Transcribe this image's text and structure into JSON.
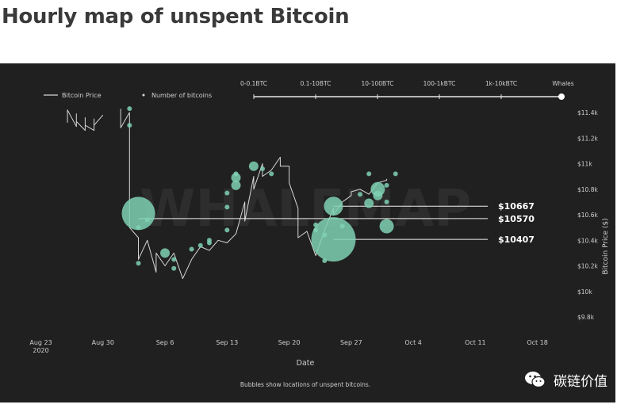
{
  "page": {
    "title": "Hourly map of unspent Bitcoin",
    "watermark": "WHALEMAP",
    "footnote": "Bubbles show locations of unspent bitcoins.",
    "wechat_label": "碳链价值"
  },
  "colors": {
    "background": "#202020",
    "line": "#d7d7d7",
    "bubble": "#7fd1b4",
    "text": "#cfcfcf"
  },
  "chart_data": {
    "type": "scatter",
    "title": "",
    "xlabel": "Date",
    "ylabel": "Bitcoin Price ($)",
    "x_ticks": [
      "Aug 23\n2020",
      "Aug 30",
      "Sep 6",
      "Sep 13",
      "Sep 20",
      "Sep 27",
      "Oct 4",
      "Oct 11",
      "Oct 18"
    ],
    "xlim": [
      "2020-08-20",
      "2020-10-20"
    ],
    "y_ticks": [
      "$11.4k",
      "$11.2k",
      "$11k",
      "$10.8k",
      "$10.6k",
      "$10.4k",
      "$10.2k",
      "$10k",
      "$9.8k"
    ],
    "ylim": [
      9800,
      11400
    ],
    "grid": false,
    "legend": {
      "position": "top-left",
      "items": [
        {
          "label": "Bitcoin Price",
          "marker": "line"
        },
        {
          "label": "Number of bitcoins",
          "marker": "dot"
        }
      ]
    },
    "size_legend": {
      "labels": [
        "0-0.1BTC",
        "0.1-10BTC",
        "10-100BTC",
        "100-1kBTC",
        "1k-10kBTC",
        "Whales"
      ]
    },
    "price_series": {
      "name": "Bitcoin Price",
      "x": [
        "2020-08-26",
        "2020-08-26",
        "2020-08-27",
        "2020-08-27",
        "2020-08-27",
        "2020-08-28",
        "2020-08-28",
        "2020-08-28",
        "2020-08-29",
        "2020-08-29",
        "2020-08-29",
        "2020-08-30",
        "2020-09-01",
        "2020-09-01",
        "2020-09-02",
        "2020-09-02",
        "2020-09-02",
        "2020-09-02",
        "2020-09-03",
        "2020-09-03",
        "2020-09-04",
        "2020-09-05",
        "2020-09-05",
        "2020-09-06",
        "2020-09-07",
        "2020-09-08",
        "2020-09-09",
        "2020-09-10",
        "2020-09-11",
        "2020-09-12",
        "2020-09-13",
        "2020-09-14",
        "2020-09-15",
        "2020-09-15",
        "2020-09-16",
        "2020-09-16",
        "2020-09-17",
        "2020-09-17",
        "2020-09-18",
        "2020-09-19",
        "2020-09-19",
        "2020-09-20",
        "2020-09-20",
        "2020-09-21",
        "2020-09-21",
        "2020-09-22",
        "2020-09-23",
        "2020-09-24",
        "2020-09-25",
        "2020-09-25",
        "2020-09-26",
        "2020-09-27",
        "2020-09-27",
        "2020-09-28",
        "2020-09-29",
        "2020-09-30",
        "2020-10-01",
        "2020-10-01"
      ],
      "y": [
        11320,
        11420,
        11290,
        11390,
        11330,
        11260,
        11360,
        11300,
        11260,
        11350,
        11300,
        11380,
        11430,
        11280,
        11400,
        11050,
        10750,
        10500,
        10420,
        10250,
        10400,
        10150,
        10300,
        10200,
        10300,
        10100,
        10250,
        10350,
        10320,
        10400,
        10380,
        10450,
        10700,
        10550,
        10900,
        10800,
        11000,
        10900,
        10950,
        11050,
        10980,
        10980,
        10850,
        10650,
        10420,
        10470,
        10280,
        10480,
        10650,
        10600,
        10700,
        10750,
        10780,
        10800,
        10760,
        10850,
        10870,
        10880
      ],
      "mode": "line"
    },
    "bubbles": [
      {
        "x": "2020-09-02",
        "y": 11430,
        "size": 1
      },
      {
        "x": "2020-09-02",
        "y": 11300,
        "size": 1
      },
      {
        "x": "2020-09-03",
        "y": 10610,
        "size": 5
      },
      {
        "x": "2020-09-03",
        "y": 10500,
        "size": 1
      },
      {
        "x": "2020-09-03",
        "y": 10220,
        "size": 1
      },
      {
        "x": "2020-09-04",
        "y": 10560,
        "size": 1
      },
      {
        "x": "2020-09-06",
        "y": 10300,
        "size": 2
      },
      {
        "x": "2020-09-07",
        "y": 10180,
        "size": 1
      },
      {
        "x": "2020-09-07",
        "y": 10250,
        "size": 1
      },
      {
        "x": "2020-09-09",
        "y": 10330,
        "size": 1
      },
      {
        "x": "2020-09-10",
        "y": 10360,
        "size": 1
      },
      {
        "x": "2020-09-11",
        "y": 10380,
        "size": 1
      },
      {
        "x": "2020-09-11",
        "y": 10400,
        "size": 1
      },
      {
        "x": "2020-09-13",
        "y": 10480,
        "size": 1
      },
      {
        "x": "2020-09-13",
        "y": 10660,
        "size": 1
      },
      {
        "x": "2020-09-13",
        "y": 10770,
        "size": 1
      },
      {
        "x": "2020-09-14",
        "y": 10830,
        "size": 2
      },
      {
        "x": "2020-09-14",
        "y": 10890,
        "size": 2
      },
      {
        "x": "2020-09-14",
        "y": 10920,
        "size": 1
      },
      {
        "x": "2020-09-16",
        "y": 10980,
        "size": 2
      },
      {
        "x": "2020-09-17",
        "y": 10960,
        "size": 1
      },
      {
        "x": "2020-09-18",
        "y": 10920,
        "size": 1
      },
      {
        "x": "2020-09-23",
        "y": 10520,
        "size": 1
      },
      {
        "x": "2020-09-23",
        "y": 10480,
        "size": 1
      },
      {
        "x": "2020-09-24",
        "y": 10440,
        "size": 1
      },
      {
        "x": "2020-09-24",
        "y": 10240,
        "size": 1
      },
      {
        "x": "2020-09-25",
        "y": 10667,
        "size": 4
      },
      {
        "x": "2020-09-25",
        "y": 10407,
        "size": 6
      },
      {
        "x": "2020-09-26",
        "y": 10510,
        "size": 1
      },
      {
        "x": "2020-09-28",
        "y": 10760,
        "size": 1
      },
      {
        "x": "2020-09-29",
        "y": 10920,
        "size": 1
      },
      {
        "x": "2020-09-29",
        "y": 10690,
        "size": 2
      },
      {
        "x": "2020-09-30",
        "y": 10750,
        "size": 2
      },
      {
        "x": "2020-09-30",
        "y": 10800,
        "size": 3
      },
      {
        "x": "2020-10-01",
        "y": 10700,
        "size": 1
      },
      {
        "x": "2020-10-01",
        "y": 10830,
        "size": 1
      },
      {
        "x": "2020-10-02",
        "y": 10920,
        "size": 1
      },
      {
        "x": "2020-10-01",
        "y": 10510,
        "size": 3
      }
    ],
    "annotations": [
      {
        "label": "$10667",
        "y": 10667,
        "from_x": "2020-09-25"
      },
      {
        "label": "$10570",
        "y": 10570,
        "from_x": "2020-09-03"
      },
      {
        "label": "$10407",
        "y": 10407,
        "from_x": "2020-09-25"
      }
    ]
  }
}
